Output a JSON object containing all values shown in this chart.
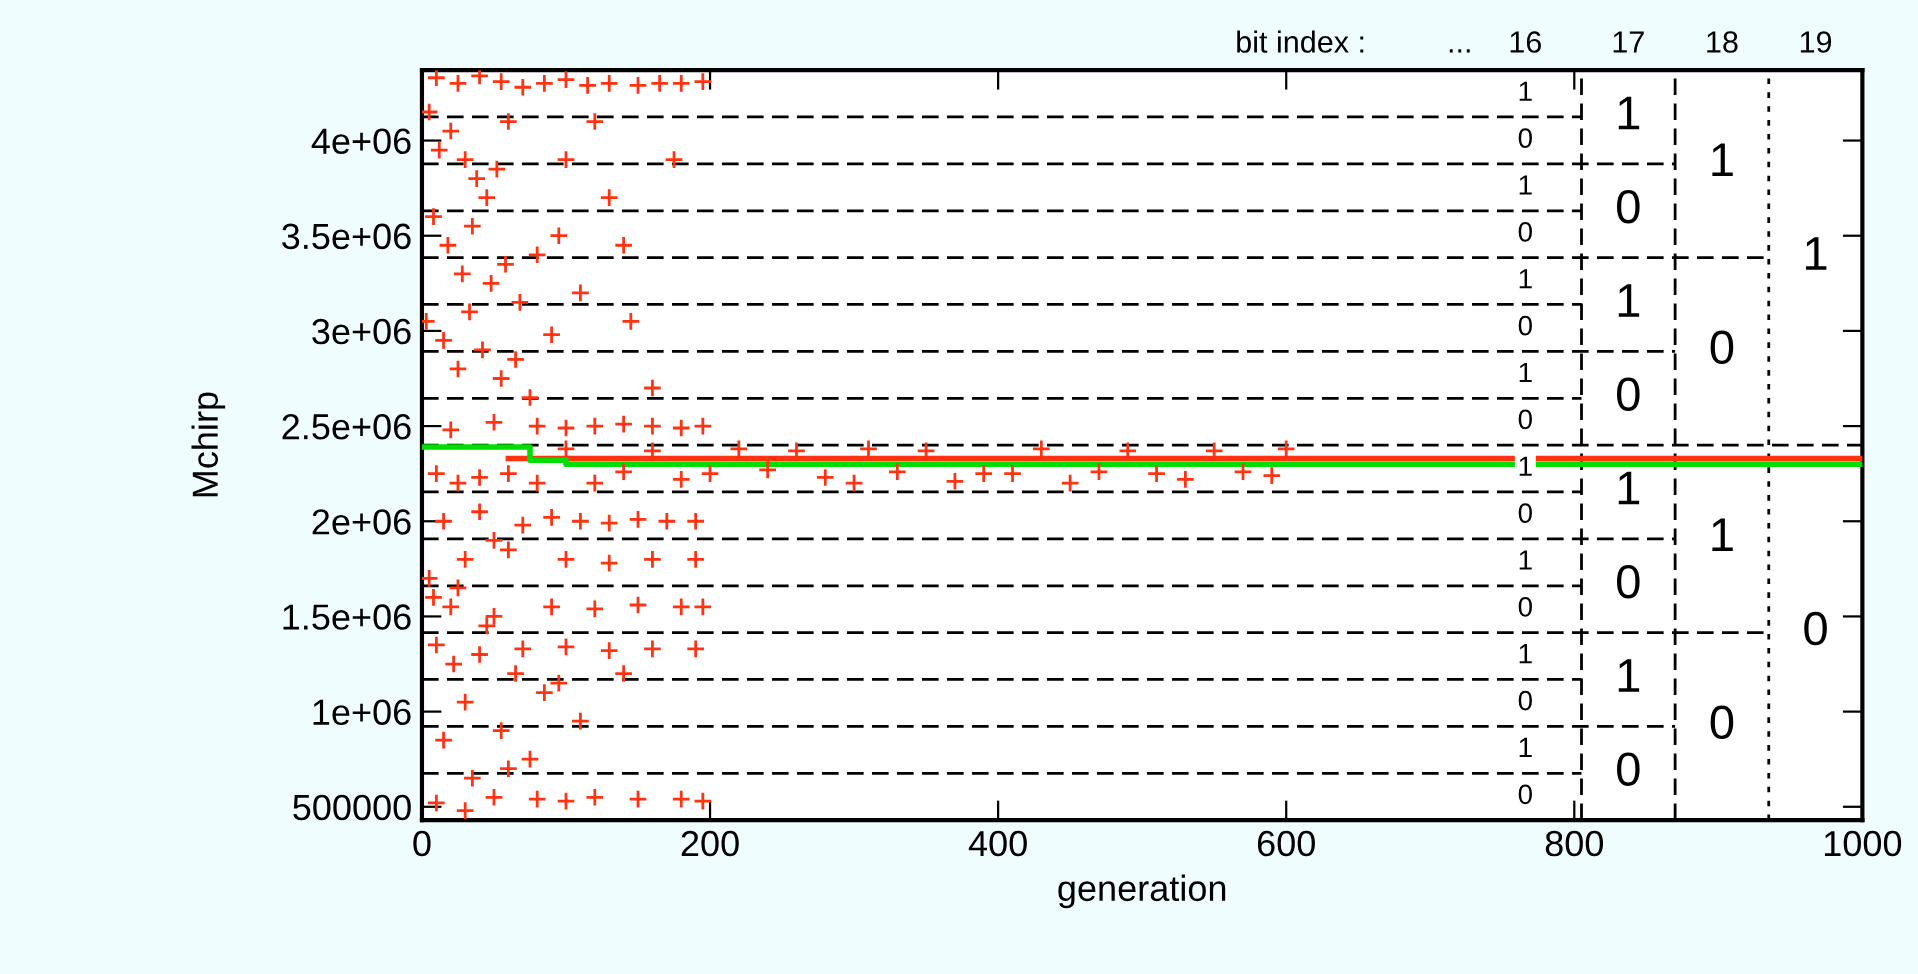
{
  "chart_data": {
    "type": "scatter",
    "xlabel": "generation",
    "ylabel": "Mchirp",
    "xlim": [
      0,
      1000
    ],
    "ylim": [
      430000,
      4370000
    ],
    "xticks": [
      0,
      200,
      400,
      600,
      800,
      1000
    ],
    "yticks": [
      500000,
      {
        "value": 1000000,
        "label": "1e+06"
      },
      {
        "value": 1500000,
        "label": "1.5e+06"
      },
      {
        "value": 2000000,
        "label": "2e+06"
      },
      {
        "value": 2500000,
        "label": "2.5e+06"
      },
      {
        "value": 3000000,
        "label": "3e+06"
      },
      {
        "value": 3500000,
        "label": "3.5e+06"
      },
      {
        "value": 4000000,
        "label": "4e+06"
      }
    ],
    "grid": false,
    "legend": false,
    "series": [
      {
        "color": "#ff3311",
        "marker": "cross",
        "x": [
          10,
          25,
          40,
          55,
          70,
          85,
          100,
          115,
          130,
          150,
          165,
          180,
          195,
          5,
          12,
          20,
          30,
          38,
          45,
          52,
          60,
          8,
          18,
          28,
          35,
          48,
          58,
          68,
          80,
          3,
          15,
          25,
          33,
          42,
          55,
          65,
          75,
          90,
          110,
          130,
          145,
          160,
          175,
          140,
          120,
          100,
          95,
          20,
          50,
          80,
          100,
          120,
          140,
          160,
          180,
          195,
          10,
          25,
          40,
          60,
          80,
          100,
          120,
          140,
          160,
          180,
          200,
          220,
          240,
          260,
          280,
          300,
          310,
          330,
          350,
          370,
          390,
          410,
          430,
          450,
          470,
          490,
          510,
          530,
          550,
          570,
          590,
          600,
          15,
          40,
          70,
          90,
          110,
          130,
          150,
          170,
          190,
          30,
          60,
          100,
          130,
          160,
          190,
          20,
          50,
          90,
          120,
          150,
          180,
          195,
          10,
          40,
          70,
          100,
          130,
          160,
          190,
          5,
          25,
          45,
          65,
          85,
          30,
          55,
          15,
          75,
          35,
          95,
          140,
          110,
          8,
          50,
          22,
          60,
          10,
          30,
          50,
          80,
          100,
          120,
          150,
          180,
          195
        ],
        "values": [
          4330000,
          4300000,
          4340000,
          4310000,
          4280000,
          4300000,
          4320000,
          4290000,
          4300000,
          4290000,
          4300000,
          4300000,
          4310000,
          4150000,
          3950000,
          4050000,
          3900000,
          3800000,
          3700000,
          3850000,
          4100000,
          3600000,
          3450000,
          3300000,
          3550000,
          3250000,
          3350000,
          3150000,
          3400000,
          3050000,
          2950000,
          2800000,
          3100000,
          2900000,
          2750000,
          2850000,
          2650000,
          2980000,
          3200000,
          3700000,
          3050000,
          2700000,
          3900000,
          3450000,
          4100000,
          3900000,
          3500000,
          2480000,
          2520000,
          2500000,
          2490000,
          2500000,
          2510000,
          2500000,
          2490000,
          2500000,
          2250000,
          2200000,
          2230000,
          2250000,
          2200000,
          2380000,
          2200000,
          2260000,
          2370000,
          2220000,
          2250000,
          2380000,
          2270000,
          2370000,
          2230000,
          2200000,
          2380000,
          2260000,
          2370000,
          2210000,
          2250000,
          2250000,
          2380000,
          2200000,
          2260000,
          2370000,
          2250000,
          2220000,
          2370000,
          2260000,
          2240000,
          2380000,
          2000000,
          2050000,
          1980000,
          2020000,
          2000000,
          1990000,
          2010000,
          2000000,
          2000000,
          1800000,
          1850000,
          1800000,
          1780000,
          1800000,
          1800000,
          1550000,
          1500000,
          1550000,
          1540000,
          1560000,
          1550000,
          1550000,
          1350000,
          1300000,
          1330000,
          1340000,
          1320000,
          1330000,
          1330000,
          1700000,
          1650000,
          1450000,
          1200000,
          1100000,
          1050000,
          900000,
          850000,
          750000,
          650000,
          1150000,
          1200000,
          950000,
          1600000,
          1900000,
          1250000,
          700000,
          520000,
          480000,
          550000,
          540000,
          530000,
          550000,
          540000,
          540000,
          530000
        ]
      },
      {
        "type": "line",
        "color": "#ff3311",
        "marker": "none",
        "x": [
          60,
          1000
        ],
        "values": [
          2330000,
          2330000
        ]
      },
      {
        "type": "line",
        "color": "#00dd00",
        "marker": "none",
        "x": [
          0,
          75,
          75,
          100,
          100,
          1000
        ],
        "values": [
          2390000,
          2390000,
          2320000,
          2320000,
          2300000,
          2300000
        ]
      }
    ],
    "ref_lines": [
      {
        "axis": "y",
        "value": 676000,
        "line_style": "dashed"
      },
      {
        "axis": "y",
        "value": 923000,
        "line_style": "dashed"
      },
      {
        "axis": "y",
        "value": 1169000,
        "line_style": "dashed"
      },
      {
        "axis": "y",
        "value": 1415000,
        "line_style": "dashed"
      },
      {
        "axis": "y",
        "value": 1661000,
        "line_style": "dashed"
      },
      {
        "axis": "y",
        "value": 1908000,
        "line_style": "dashed"
      },
      {
        "axis": "y",
        "value": 2154000,
        "line_style": "dashed"
      },
      {
        "axis": "y",
        "value": 2400000,
        "line_style": "dashed"
      },
      {
        "axis": "y",
        "value": 2646000,
        "line_style": "dashed"
      },
      {
        "axis": "y",
        "value": 2893000,
        "line_style": "dashed"
      },
      {
        "axis": "y",
        "value": 3139000,
        "line_style": "dashed"
      },
      {
        "axis": "y",
        "value": 3385000,
        "line_style": "dashed"
      },
      {
        "axis": "y",
        "value": 3631000,
        "line_style": "dashed"
      },
      {
        "axis": "y",
        "value": 3878000,
        "line_style": "dashed"
      },
      {
        "axis": "y",
        "value": 4124000,
        "line_style": "dashed"
      },
      {
        "axis": "x",
        "value": 805,
        "line_style": "dashed"
      },
      {
        "axis": "x",
        "value": 870,
        "line_style": "dashed"
      },
      {
        "axis": "x",
        "value": 935,
        "line_style": "dotted"
      }
    ],
    "annotations": [
      "bit index :",
      "...",
      "16",
      "17",
      "18",
      "19",
      "1",
      "0",
      "1",
      "0",
      "1",
      "0",
      "1",
      "0",
      "1",
      "0",
      "1",
      "0",
      "1",
      "0",
      "1",
      "0",
      "1",
      "0",
      "1",
      "0",
      "1",
      "0",
      "1",
      "0",
      "1",
      "0",
      "1",
      "0",
      "1",
      "0"
    ]
  }
}
